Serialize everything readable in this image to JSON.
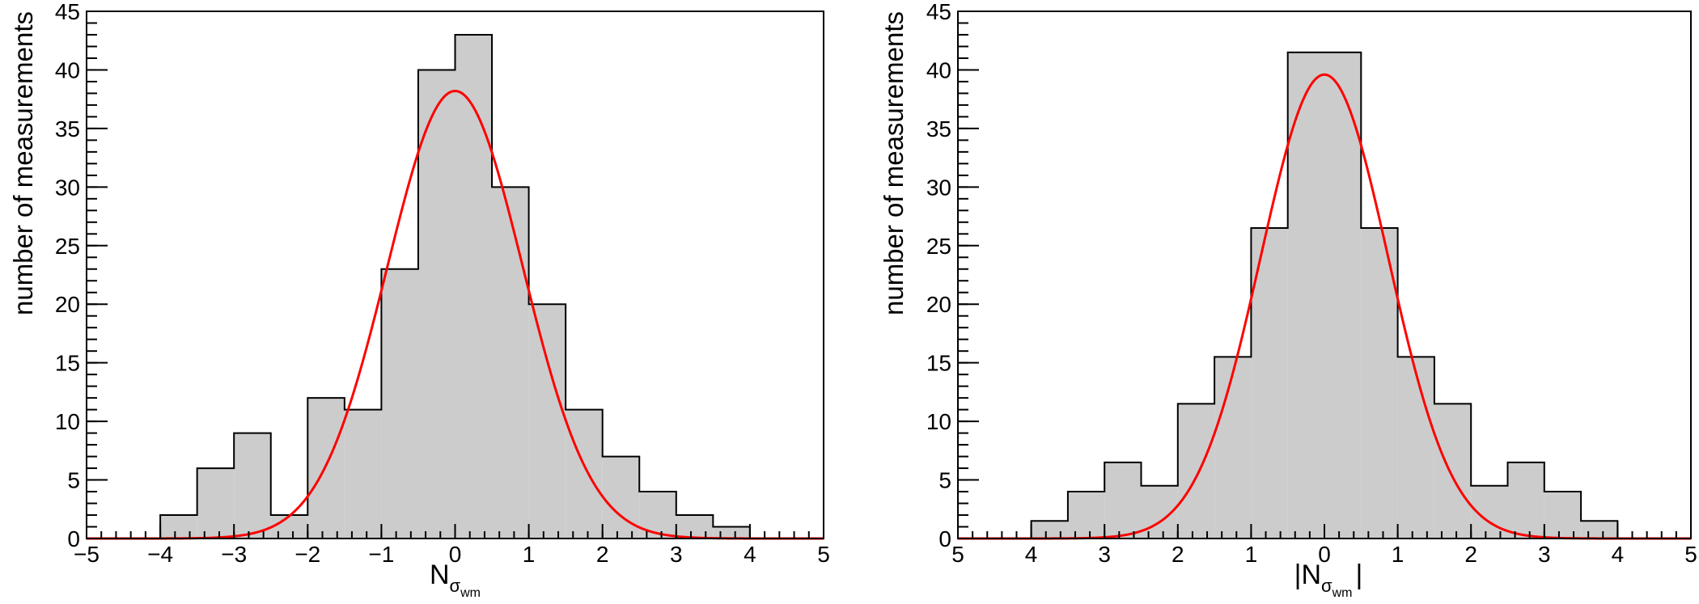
{
  "colors": {
    "fill": "#cccccc",
    "outline": "#000000",
    "fit": "#ff0000"
  },
  "chart_data": [
    {
      "type": "bar",
      "ylabel": "number of measurements",
      "xlabel": {
        "base": "N",
        "sub": "σ",
        "subsub": "wm",
        "prefix": "",
        "suffix": ""
      },
      "xlim": [
        -5,
        5
      ],
      "ylim": [
        0,
        45
      ],
      "xticks": [
        -5,
        -4,
        -3,
        -2,
        -1,
        0,
        1,
        2,
        3,
        4,
        5
      ],
      "xtick_labels": [
        "−5",
        "−4",
        "−3",
        "−2",
        "−1",
        "0",
        "1",
        "2",
        "3",
        "4",
        "5"
      ],
      "yticks": [
        0,
        5,
        10,
        15,
        20,
        25,
        30,
        35,
        40,
        45
      ],
      "ytick_labels": [
        "0",
        "5",
        "10",
        "15",
        "20",
        "25",
        "30",
        "35",
        "40",
        "45"
      ],
      "bin_width": 0.5,
      "bin_edges_start": -4,
      "values": [
        2,
        6,
        9,
        2,
        12,
        11,
        23,
        40,
        43,
        30,
        20,
        11,
        7,
        4,
        2,
        1
      ],
      "fit": {
        "type": "gaussian",
        "amplitude": 38.2,
        "mean": 0.0,
        "sigma": 0.92
      }
    },
    {
      "type": "bar",
      "ylabel": "number of measurements",
      "xlabel": {
        "base": "N",
        "sub": "σ",
        "subsub": "wm",
        "prefix": "|",
        "suffix": "|"
      },
      "xlim": [
        -5,
        5
      ],
      "ylim": [
        0,
        45
      ],
      "xticks": [
        -5,
        -4,
        -3,
        -2,
        -1,
        0,
        1,
        2,
        3,
        4,
        5
      ],
      "xtick_labels": [
        "5",
        "4",
        "3",
        "2",
        "1",
        "0",
        "1",
        "2",
        "3",
        "4",
        "5"
      ],
      "yticks": [
        0,
        5,
        10,
        15,
        20,
        25,
        30,
        35,
        40,
        45
      ],
      "ytick_labels": [
        "0",
        "5",
        "10",
        "15",
        "20",
        "25",
        "30",
        "35",
        "40",
        "45"
      ],
      "bin_width": 0.5,
      "bin_edges_start": -4,
      "values": [
        1.5,
        4,
        6.5,
        4.5,
        11.5,
        15.5,
        26.5,
        41.5,
        41.5,
        26.5,
        15.5,
        11.5,
        4.5,
        6.5,
        4,
        1.5
      ],
      "fit": {
        "type": "gaussian",
        "amplitude": 39.6,
        "mean": 0.0,
        "sigma": 0.87
      }
    }
  ]
}
